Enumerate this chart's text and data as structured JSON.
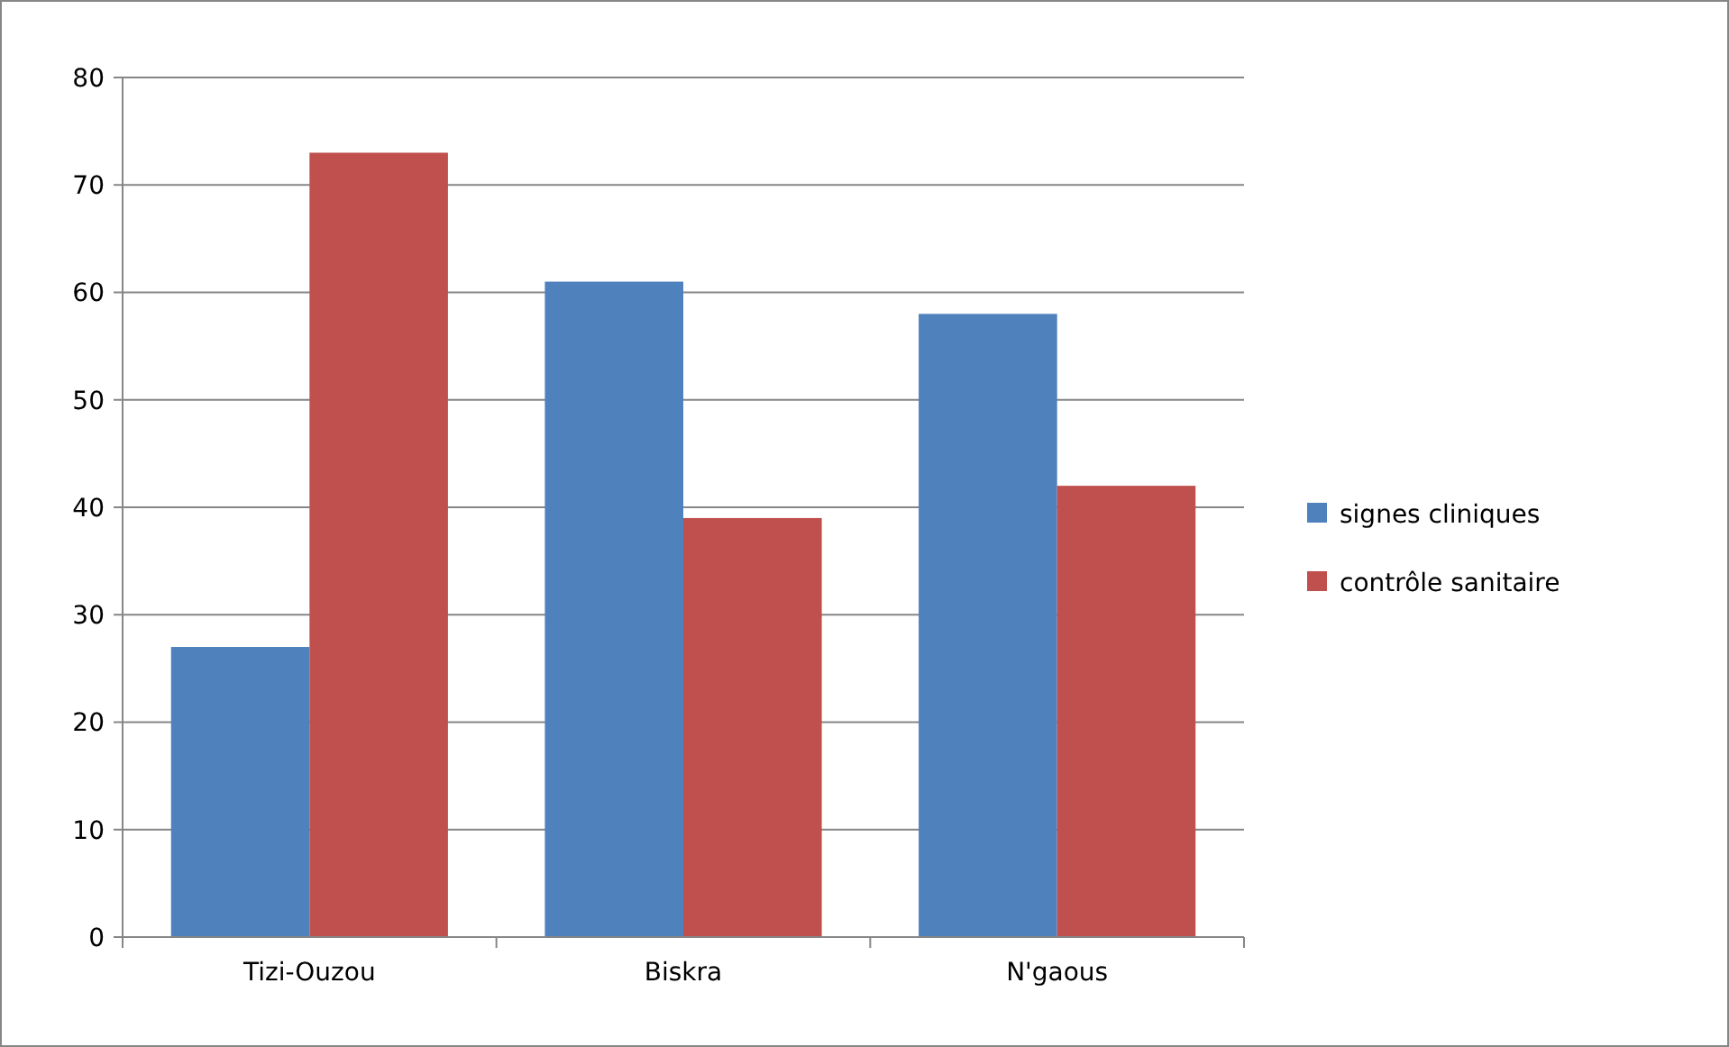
{
  "chart_data": {
    "type": "bar",
    "categories": [
      "Tizi-Ouzou",
      "Biskra",
      "N'gaous"
    ],
    "series": [
      {
        "name": "signes cliniques",
        "color": "#4f81bd",
        "values": [
          27,
          61,
          58
        ]
      },
      {
        "name": "contrôle sanitaire",
        "color": "#c0504d",
        "values": [
          73,
          39,
          42
        ]
      }
    ],
    "ylim": [
      0,
      80
    ],
    "yticks": [
      0,
      10,
      20,
      30,
      40,
      50,
      60,
      70,
      80
    ],
    "grid": "y",
    "legend": "right"
  }
}
